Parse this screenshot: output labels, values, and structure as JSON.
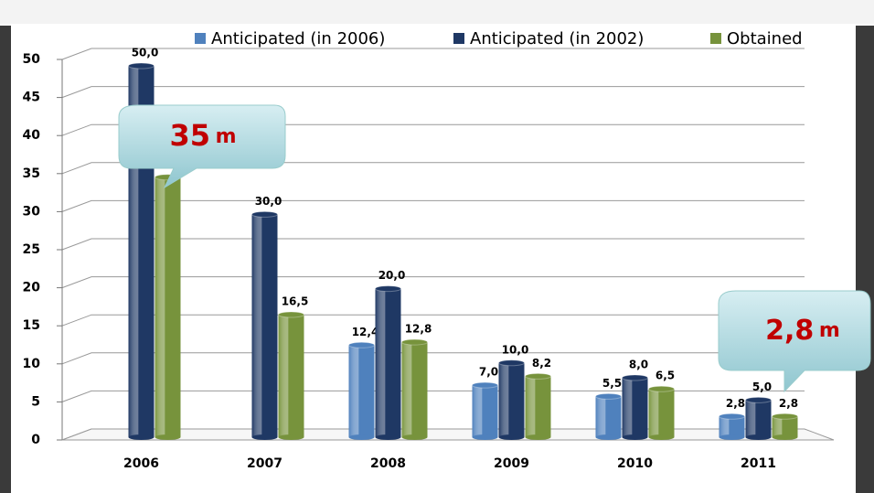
{
  "chart_data": {
    "type": "bar3d",
    "categories": [
      "2006",
      "2007",
      "2008",
      "2009",
      "2010",
      "2011"
    ],
    "series": [
      {
        "name": "Anticipated (in 2006)",
        "color": "#4f81bd",
        "values": [
          null,
          null,
          12.4,
          7.0,
          5.5,
          2.8
        ],
        "value_labels": [
          null,
          null,
          "12,4",
          "7,0",
          "5,5",
          "2,8"
        ]
      },
      {
        "name": "Anticipated (in 2002)",
        "color": "#1f3864",
        "values": [
          50.0,
          30.0,
          20.0,
          10.0,
          8.0,
          5.0
        ],
        "value_labels": [
          "50,0",
          "30,0",
          "20,0",
          "10,0",
          "8,0",
          "5,0"
        ]
      },
      {
        "name": "Obtained",
        "color": "#77933c",
        "values": [
          35,
          16.5,
          12.8,
          8.2,
          6.5,
          2.8
        ],
        "value_labels": [
          null,
          "16,5",
          "12,8",
          "8,2",
          "6,5",
          "2,8"
        ]
      }
    ],
    "ylim": [
      0,
      50
    ],
    "yticks": [
      0,
      5,
      10,
      15,
      20,
      25,
      30,
      35,
      40,
      45,
      50
    ],
    "grid": true,
    "annotations": [
      {
        "text": "35",
        "unit": "m"
      },
      {
        "text": "2,8",
        "unit": "m"
      }
    ]
  }
}
